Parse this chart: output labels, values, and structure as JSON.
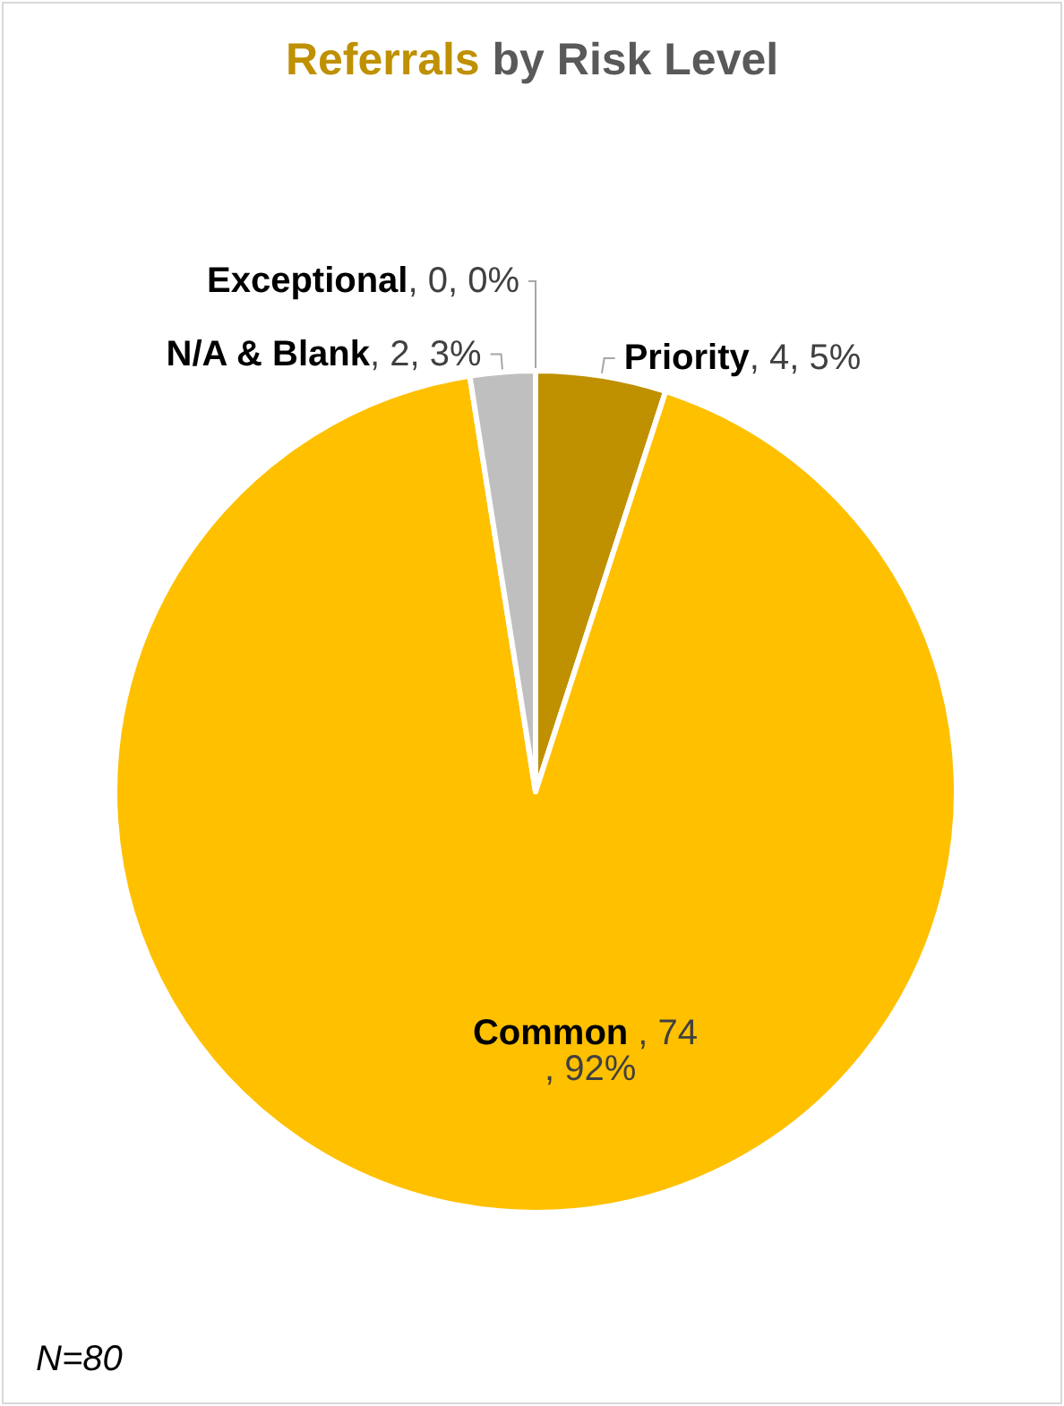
{
  "chart_data": {
    "type": "pie",
    "title": "Referrals by Risk Level",
    "categories": [
      "Exceptional",
      "Priority",
      "Common",
      "N/A & Blank"
    ],
    "values": [
      0,
      4,
      74,
      2
    ],
    "colors": [
      "#a5a5a5",
      "#bf9000",
      "#ffc000",
      "#bfbfbf"
    ],
    "value_labels": [
      ", 0, 0%",
      ", 4, 5%",
      ", 74, 92%",
      ", 2, 3%"
    ],
    "annotations": [
      "N=80"
    ],
    "legend": false
  }
}
